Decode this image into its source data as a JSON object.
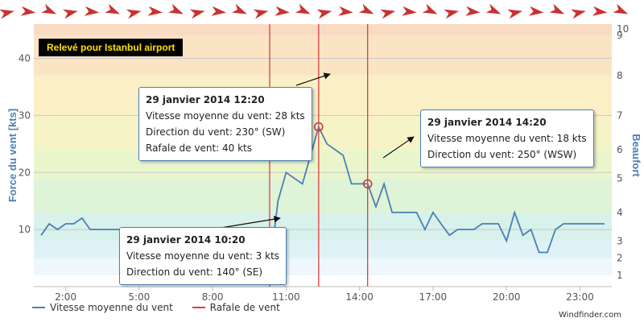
{
  "badge": "Relevé pour Istanbul airport",
  "credit": "Windfinder.com",
  "colors": {
    "series": "#4a7fb5",
    "gust": "#d84040",
    "marker": "#e03030",
    "axis_title": "#4a7fb5"
  },
  "tooltips": [
    {
      "title": "29 janvier 2014 12:20",
      "lines": [
        "Vitesse moyenne du vent: 28 kts",
        "Direction du vent: 230° (SW)",
        "Rafale de vent: 40 kts"
      ]
    },
    {
      "title": "29 janvier 2014 14:20",
      "lines": [
        "Vitesse moyenne du vent: 18 kts",
        "Direction du vent: 250° (WSW)"
      ]
    },
    {
      "title": "29 janvier 2014 10:20",
      "lines": [
        "Vitesse moyenne du vent: 3 kts",
        "Direction du vent: 140° (SE)"
      ]
    }
  ],
  "legend": [
    {
      "label": "Vitesse moyenne du vent",
      "color": "#4a7fb5"
    },
    {
      "label": "Rafale de vent",
      "color": "#d84040"
    }
  ],
  "chart_data": {
    "type": "line",
    "title": "",
    "xlabel": "",
    "ylabel": "Force du vent [kts]",
    "y2label": "Beaufort",
    "x_ticks": [
      "2:00",
      "5:00",
      "8:00",
      "11:00",
      "14:00",
      "17:00",
      "20:00",
      "23:00"
    ],
    "x_tick_hours": [
      2,
      5,
      8,
      11,
      14,
      17,
      20,
      23
    ],
    "xlim": [
      0.7,
      24.3
    ],
    "y_ticks": [
      10,
      20,
      30,
      40
    ],
    "ylim": [
      0,
      46
    ],
    "beaufort_ticks": [
      1,
      2,
      3,
      4,
      5,
      6,
      7,
      8,
      9,
      10
    ],
    "beaufort_kts": [
      2,
      5,
      8,
      13,
      19,
      24,
      30,
      37,
      44,
      51
    ],
    "grid": true,
    "legend_position": "bottom-left",
    "series": [
      {
        "name": "Vitesse moyenne du vent",
        "x": [
          1.0,
          1.33,
          1.67,
          2.0,
          2.33,
          2.67,
          3.0,
          3.33,
          3.67,
          4.0,
          4.33,
          4.67,
          5.0,
          5.33,
          5.67,
          6.0,
          6.33,
          6.67,
          7.0,
          7.33,
          7.67,
          8.0,
          8.33,
          8.67,
          9.0,
          9.33,
          9.67,
          10.0,
          10.33,
          10.67,
          11.0,
          11.33,
          11.67,
          12.0,
          12.33,
          12.67,
          13.0,
          13.33,
          13.67,
          14.0,
          14.33,
          14.67,
          15.0,
          15.33,
          15.67,
          16.0,
          16.33,
          16.67,
          17.0,
          17.33,
          17.67,
          18.0,
          18.33,
          18.67,
          19.0,
          19.33,
          19.67,
          20.0,
          20.33,
          20.67,
          21.0,
          21.33,
          21.67,
          22.0,
          22.33,
          22.67,
          23.0,
          23.33,
          23.67,
          24.0
        ],
        "values": [
          9,
          11,
          10,
          11,
          11,
          12,
          10,
          10,
          10,
          10,
          10,
          10,
          10,
          10,
          10,
          10,
          10,
          10,
          10,
          10,
          10,
          10,
          10,
          10,
          10,
          10,
          10,
          6,
          3,
          15,
          20,
          19,
          18,
          23,
          28,
          25,
          24,
          23,
          18,
          18,
          18,
          14,
          18,
          13,
          13,
          13,
          13,
          10,
          13,
          11,
          9,
          10,
          10,
          10,
          11,
          11,
          11,
          8,
          13,
          9,
          10,
          6,
          6,
          10,
          11,
          11,
          11,
          11,
          11,
          11
        ]
      },
      {
        "name": "Rafale de vent",
        "x_hours": [
          10.33,
          12.33,
          14.33
        ],
        "values": [
          3,
          40,
          18
        ]
      }
    ],
    "highlighted_points": [
      {
        "x": 10.33,
        "y": 3
      },
      {
        "x": 12.33,
        "y": 28
      },
      {
        "x": 14.33,
        "y": 18
      }
    ]
  }
}
